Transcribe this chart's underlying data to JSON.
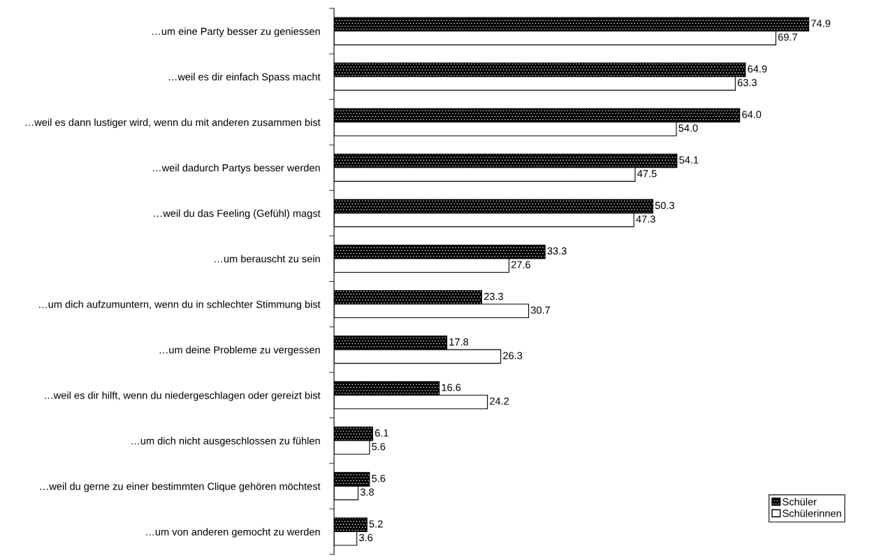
{
  "chart_data": {
    "type": "bar",
    "orientation": "horizontal",
    "categories": [
      "…um eine Party besser zu geniessen",
      "…weil es dir einfach Spass macht",
      "…weil es dann lustiger wird, wenn du mit anderen zusammen bist",
      "…weil dadurch Partys besser werden",
      "…weil du das Feeling (Gefühl) magst",
      "…um berauscht zu sein",
      "…um dich aufzumuntern, wenn du in schlechter Stimmung bist",
      "…um deine Probleme zu vergessen",
      "…weil es dir hilft, wenn du niedergeschlagen oder gereizt bist",
      "…um dich nicht ausgeschlossen zu fühlen",
      "…weil du gerne zu einer bestimmten Clique gehören möchtest",
      "…um von anderen gemocht zu werden"
    ],
    "series": [
      {
        "name": "Schüler",
        "color": "#000000",
        "values": [
          74.9,
          64.9,
          64.0,
          54.1,
          50.3,
          33.3,
          23.3,
          17.8,
          16.6,
          6.1,
          5.6,
          5.2
        ],
        "value_labels": [
          "74.9",
          "64.9",
          "64.0",
          "54.1",
          "50.3",
          "33.3",
          "23.3",
          "17.8",
          "16.6",
          "6.1",
          "5.6",
          "5.2"
        ]
      },
      {
        "name": "Schülerinnen",
        "color": "#ffffff",
        "values": [
          69.7,
          63.3,
          54.0,
          47.5,
          47.3,
          27.6,
          30.7,
          26.3,
          24.2,
          5.6,
          3.8,
          3.6
        ],
        "value_labels": [
          "69.7",
          "63.3",
          "54.0",
          "47.5",
          "47.3",
          "27.6",
          "30.7",
          "26.3",
          "24.2",
          "5.6",
          "3.8",
          "3.6"
        ]
      }
    ],
    "legend": "bottom right",
    "grid": false
  }
}
